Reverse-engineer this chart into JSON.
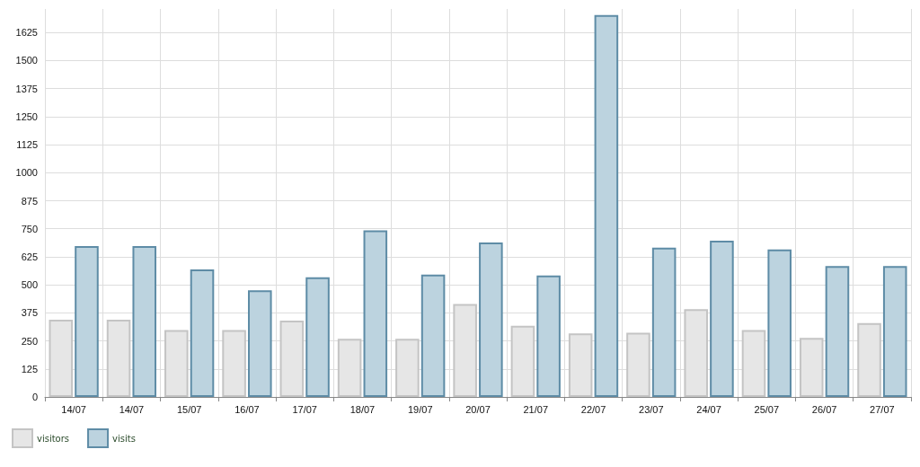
{
  "chart_data": {
    "type": "bar",
    "categories": [
      "14/07",
      "14/07",
      "15/07",
      "16/07",
      "17/07",
      "18/07",
      "19/07",
      "20/07",
      "21/07",
      "22/07",
      "23/07",
      "24/07",
      "25/07",
      "26/07",
      "27/07"
    ],
    "series": [
      {
        "name": "visitors",
        "color": "#e6e6e6",
        "values": [
          344,
          344,
          298,
          298,
          340,
          259,
          259,
          414,
          317,
          283,
          286,
          391,
          298,
          263,
          329
        ]
      },
      {
        "name": "visits",
        "color": "#bcd3df",
        "values": [
          673,
          673,
          569,
          476,
          534,
          743,
          546,
          689,
          542,
          1703,
          666,
          697,
          658,
          584,
          584
        ]
      }
    ],
    "ylim": [
      0,
      1730
    ],
    "yticks": [
      0,
      125,
      250,
      375,
      500,
      625,
      750,
      875,
      1000,
      1125,
      1250,
      1375,
      1500,
      1625
    ],
    "grid": true,
    "legend": "bottom left"
  }
}
